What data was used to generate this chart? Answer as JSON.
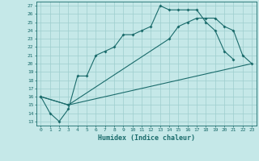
{
  "xlabel": "Humidex (Indice chaleur)",
  "bg_color": "#c5e8e8",
  "line_color": "#1a6b6b",
  "grid_color": "#9ecece",
  "xlim": [
    -0.5,
    23.5
  ],
  "ylim": [
    12.5,
    27.5
  ],
  "xticks": [
    0,
    1,
    2,
    3,
    4,
    5,
    6,
    7,
    8,
    9,
    10,
    11,
    12,
    13,
    14,
    15,
    16,
    17,
    18,
    19,
    20,
    21,
    22,
    23
  ],
  "yticks": [
    13,
    14,
    15,
    16,
    17,
    18,
    19,
    20,
    21,
    22,
    23,
    24,
    25,
    26,
    27
  ],
  "line1_x": [
    0,
    1,
    2,
    3,
    4,
    5,
    6,
    7,
    8,
    9,
    10,
    11,
    12,
    13,
    14,
    15,
    16,
    17,
    18,
    19,
    20,
    21
  ],
  "line1_y": [
    16,
    14,
    13,
    14.5,
    18.5,
    18.5,
    21,
    21.5,
    22,
    23.5,
    23.5,
    24,
    24.5,
    27,
    26.5,
    26.5,
    26.5,
    26.5,
    25,
    24,
    21.5,
    20.5
  ],
  "line2_x": [
    0,
    3,
    14,
    15,
    16,
    17,
    18,
    19,
    20,
    21,
    22,
    23
  ],
  "line2_y": [
    16,
    15,
    23,
    24.5,
    25,
    25.5,
    25.5,
    25.5,
    24.5,
    24,
    21,
    20
  ],
  "line3_x": [
    0,
    3,
    23
  ],
  "line3_y": [
    16,
    15,
    20
  ]
}
